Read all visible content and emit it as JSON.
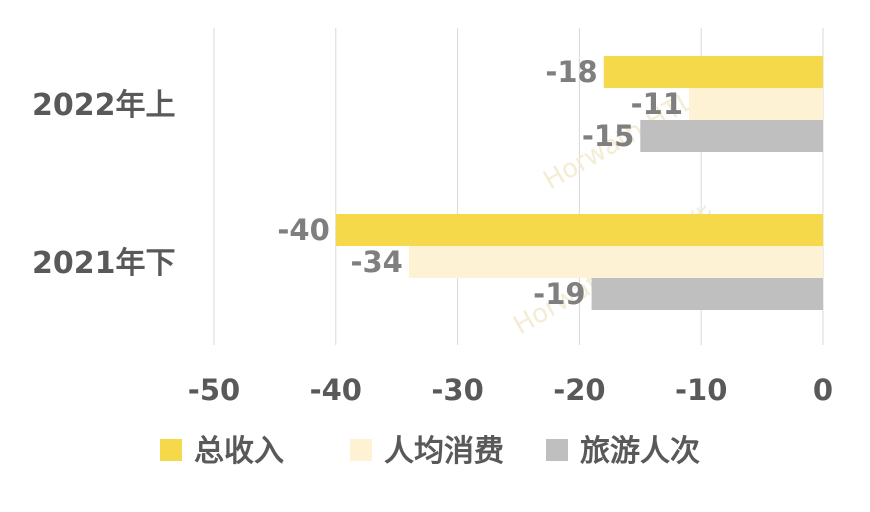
{
  "chart_data": {
    "type": "bar",
    "orientation": "horizontal",
    "categories": [
      "2022年上",
      "2021年下"
    ],
    "series": [
      {
        "name": "总收入",
        "values": [
          -18,
          -40
        ],
        "color": "#f5d94a"
      },
      {
        "name": "人均消费",
        "values": [
          -11,
          -34
        ],
        "color": "#fdf3d4"
      },
      {
        "name": "旅游人次",
        "values": [
          -15,
          -19
        ],
        "color": "#bfbfbf"
      }
    ],
    "xlim": [
      -50,
      0
    ],
    "x_ticks": [
      "-50",
      "-40",
      "-30",
      "-20",
      "-10",
      "0"
    ],
    "grid": true,
    "legend_position": "bottom",
    "watermark": [
      "Horwath HTL 浩华",
      "Horwath HTL 浩华"
    ]
  }
}
